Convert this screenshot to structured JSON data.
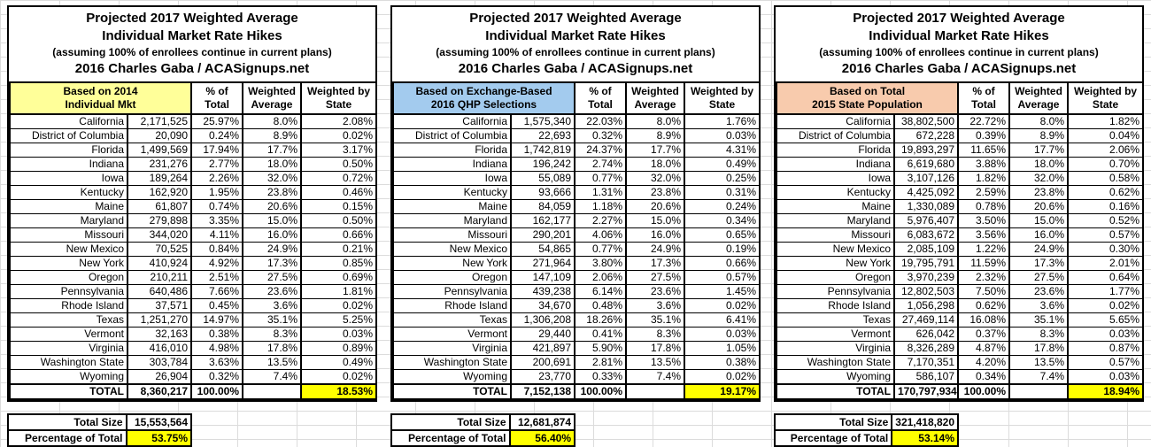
{
  "title": {
    "line1": "Projected 2017 Weighted Average",
    "line2": "Individual Market Rate Hikes",
    "line3": "(assuming 100% of enrollees continue in current plans)",
    "line4": "2016 Charles Gaba / ACASignups.net"
  },
  "columns": {
    "pct_of_total": "% of Total",
    "weighted_average": "Weighted Average",
    "weighted_by_state": "Weighted by State"
  },
  "footer_labels": {
    "total_size": "Total Size",
    "percentage_of_total": "Percentage of Total"
  },
  "colors": {
    "table1_header": "#FFFF99",
    "table2_header": "#A3CBEE",
    "table3_header": "#F8CBAD",
    "total_highlight": "#FFFF00"
  },
  "tables": [
    {
      "basis_line1": "Based on 2014",
      "basis_line2": "Individual Mkt",
      "header_color": "#FFFF99",
      "rows": [
        {
          "state": "California",
          "size": "2,171,525",
          "pct": "25.97%",
          "wavg": "8.0%",
          "wstate": "2.08%"
        },
        {
          "state": "District of Columbia",
          "size": "20,090",
          "pct": "0.24%",
          "wavg": "8.9%",
          "wstate": "0.02%"
        },
        {
          "state": "Florida",
          "size": "1,499,569",
          "pct": "17.94%",
          "wavg": "17.7%",
          "wstate": "3.17%"
        },
        {
          "state": "Indiana",
          "size": "231,276",
          "pct": "2.77%",
          "wavg": "18.0%",
          "wstate": "0.50%"
        },
        {
          "state": "Iowa",
          "size": "189,264",
          "pct": "2.26%",
          "wavg": "32.0%",
          "wstate": "0.72%"
        },
        {
          "state": "Kentucky",
          "size": "162,920",
          "pct": "1.95%",
          "wavg": "23.8%",
          "wstate": "0.46%"
        },
        {
          "state": "Maine",
          "size": "61,807",
          "pct": "0.74%",
          "wavg": "20.6%",
          "wstate": "0.15%"
        },
        {
          "state": "Maryland",
          "size": "279,898",
          "pct": "3.35%",
          "wavg": "15.0%",
          "wstate": "0.50%"
        },
        {
          "state": "Missouri",
          "size": "344,020",
          "pct": "4.11%",
          "wavg": "16.0%",
          "wstate": "0.66%"
        },
        {
          "state": "New Mexico",
          "size": "70,525",
          "pct": "0.84%",
          "wavg": "24.9%",
          "wstate": "0.21%"
        },
        {
          "state": "New York",
          "size": "410,924",
          "pct": "4.92%",
          "wavg": "17.3%",
          "wstate": "0.85%"
        },
        {
          "state": "Oregon",
          "size": "210,211",
          "pct": "2.51%",
          "wavg": "27.5%",
          "wstate": "0.69%"
        },
        {
          "state": "Pennsylvania",
          "size": "640,486",
          "pct": "7.66%",
          "wavg": "23.6%",
          "wstate": "1.81%"
        },
        {
          "state": "Rhode Island",
          "size": "37,571",
          "pct": "0.45%",
          "wavg": "3.6%",
          "wstate": "0.02%"
        },
        {
          "state": "Texas",
          "size": "1,251,270",
          "pct": "14.97%",
          "wavg": "35.1%",
          "wstate": "5.25%"
        },
        {
          "state": "Vermont",
          "size": "32,163",
          "pct": "0.38%",
          "wavg": "8.3%",
          "wstate": "0.03%"
        },
        {
          "state": "Virginia",
          "size": "416,010",
          "pct": "4.98%",
          "wavg": "17.8%",
          "wstate": "0.89%"
        },
        {
          "state": "Washington State",
          "size": "303,784",
          "pct": "3.63%",
          "wavg": "13.5%",
          "wstate": "0.49%"
        },
        {
          "state": "Wyoming",
          "size": "26,904",
          "pct": "0.32%",
          "wavg": "7.4%",
          "wstate": "0.02%"
        }
      ],
      "total_row": {
        "label": "TOTAL",
        "size": "8,360,217",
        "pct": "100.00%",
        "wavg": "",
        "wstate": "18.53%"
      },
      "total_size": "15,553,564",
      "percentage_of_total": "53.75%"
    },
    {
      "basis_line1": "Based on Exchange-Based",
      "basis_line2": "2016 QHP Selections",
      "header_color": "#A3CBEE",
      "rows": [
        {
          "state": "California",
          "size": "1,575,340",
          "pct": "22.03%",
          "wavg": "8.0%",
          "wstate": "1.76%"
        },
        {
          "state": "District of Columbia",
          "size": "22,693",
          "pct": "0.32%",
          "wavg": "8.9%",
          "wstate": "0.03%"
        },
        {
          "state": "Florida",
          "size": "1,742,819",
          "pct": "24.37%",
          "wavg": "17.7%",
          "wstate": "4.31%"
        },
        {
          "state": "Indiana",
          "size": "196,242",
          "pct": "2.74%",
          "wavg": "18.0%",
          "wstate": "0.49%"
        },
        {
          "state": "Iowa",
          "size": "55,089",
          "pct": "0.77%",
          "wavg": "32.0%",
          "wstate": "0.25%"
        },
        {
          "state": "Kentucky",
          "size": "93,666",
          "pct": "1.31%",
          "wavg": "23.8%",
          "wstate": "0.31%"
        },
        {
          "state": "Maine",
          "size": "84,059",
          "pct": "1.18%",
          "wavg": "20.6%",
          "wstate": "0.24%"
        },
        {
          "state": "Maryland",
          "size": "162,177",
          "pct": "2.27%",
          "wavg": "15.0%",
          "wstate": "0.34%"
        },
        {
          "state": "Missouri",
          "size": "290,201",
          "pct": "4.06%",
          "wavg": "16.0%",
          "wstate": "0.65%"
        },
        {
          "state": "New Mexico",
          "size": "54,865",
          "pct": "0.77%",
          "wavg": "24.9%",
          "wstate": "0.19%"
        },
        {
          "state": "New York",
          "size": "271,964",
          "pct": "3.80%",
          "wavg": "17.3%",
          "wstate": "0.66%"
        },
        {
          "state": "Oregon",
          "size": "147,109",
          "pct": "2.06%",
          "wavg": "27.5%",
          "wstate": "0.57%"
        },
        {
          "state": "Pennsylvania",
          "size": "439,238",
          "pct": "6.14%",
          "wavg": "23.6%",
          "wstate": "1.45%"
        },
        {
          "state": "Rhode Island",
          "size": "34,670",
          "pct": "0.48%",
          "wavg": "3.6%",
          "wstate": "0.02%"
        },
        {
          "state": "Texas",
          "size": "1,306,208",
          "pct": "18.26%",
          "wavg": "35.1%",
          "wstate": "6.41%"
        },
        {
          "state": "Vermont",
          "size": "29,440",
          "pct": "0.41%",
          "wavg": "8.3%",
          "wstate": "0.03%"
        },
        {
          "state": "Virginia",
          "size": "421,897",
          "pct": "5.90%",
          "wavg": "17.8%",
          "wstate": "1.05%"
        },
        {
          "state": "Washington State",
          "size": "200,691",
          "pct": "2.81%",
          "wavg": "13.5%",
          "wstate": "0.38%"
        },
        {
          "state": "Wyoming",
          "size": "23,770",
          "pct": "0.33%",
          "wavg": "7.4%",
          "wstate": "0.02%"
        }
      ],
      "total_row": {
        "label": "TOTAL",
        "size": "7,152,138",
        "pct": "100.00%",
        "wavg": "",
        "wstate": "19.17%"
      },
      "total_size": "12,681,874",
      "percentage_of_total": "56.40%"
    },
    {
      "basis_line1": "Based on Total",
      "basis_line2": "2015 State Population",
      "header_color": "#F8CBAD",
      "rows": [
        {
          "state": "California",
          "size": "38,802,500",
          "pct": "22.72%",
          "wavg": "8.0%",
          "wstate": "1.82%"
        },
        {
          "state": "District of Columbia",
          "size": "672,228",
          "pct": "0.39%",
          "wavg": "8.9%",
          "wstate": "0.04%"
        },
        {
          "state": "Florida",
          "size": "19,893,297",
          "pct": "11.65%",
          "wavg": "17.7%",
          "wstate": "2.06%"
        },
        {
          "state": "Indiana",
          "size": "6,619,680",
          "pct": "3.88%",
          "wavg": "18.0%",
          "wstate": "0.70%"
        },
        {
          "state": "Iowa",
          "size": "3,107,126",
          "pct": "1.82%",
          "wavg": "32.0%",
          "wstate": "0.58%"
        },
        {
          "state": "Kentucky",
          "size": "4,425,092",
          "pct": "2.59%",
          "wavg": "23.8%",
          "wstate": "0.62%"
        },
        {
          "state": "Maine",
          "size": "1,330,089",
          "pct": "0.78%",
          "wavg": "20.6%",
          "wstate": "0.16%"
        },
        {
          "state": "Maryland",
          "size": "5,976,407",
          "pct": "3.50%",
          "wavg": "15.0%",
          "wstate": "0.52%"
        },
        {
          "state": "Missouri",
          "size": "6,083,672",
          "pct": "3.56%",
          "wavg": "16.0%",
          "wstate": "0.57%"
        },
        {
          "state": "New Mexico",
          "size": "2,085,109",
          "pct": "1.22%",
          "wavg": "24.9%",
          "wstate": "0.30%"
        },
        {
          "state": "New York",
          "size": "19,795,791",
          "pct": "11.59%",
          "wavg": "17.3%",
          "wstate": "2.01%"
        },
        {
          "state": "Oregon",
          "size": "3,970,239",
          "pct": "2.32%",
          "wavg": "27.5%",
          "wstate": "0.64%"
        },
        {
          "state": "Pennsylvania",
          "size": "12,802,503",
          "pct": "7.50%",
          "wavg": "23.6%",
          "wstate": "1.77%"
        },
        {
          "state": "Rhode Island",
          "size": "1,056,298",
          "pct": "0.62%",
          "wavg": "3.6%",
          "wstate": "0.02%"
        },
        {
          "state": "Texas",
          "size": "27,469,114",
          "pct": "16.08%",
          "wavg": "35.1%",
          "wstate": "5.65%"
        },
        {
          "state": "Vermont",
          "size": "626,042",
          "pct": "0.37%",
          "wavg": "8.3%",
          "wstate": "0.03%"
        },
        {
          "state": "Virginia",
          "size": "8,326,289",
          "pct": "4.87%",
          "wavg": "17.8%",
          "wstate": "0.87%"
        },
        {
          "state": "Washington State",
          "size": "7,170,351",
          "pct": "4.20%",
          "wavg": "13.5%",
          "wstate": "0.57%"
        },
        {
          "state": "Wyoming",
          "size": "586,107",
          "pct": "0.34%",
          "wavg": "7.4%",
          "wstate": "0.03%"
        }
      ],
      "total_row": {
        "label": "TOTAL",
        "size": "170,797,934",
        "pct": "100.00%",
        "wavg": "",
        "wstate": "18.94%"
      },
      "total_size": "321,418,820",
      "percentage_of_total": "53.14%"
    }
  ]
}
